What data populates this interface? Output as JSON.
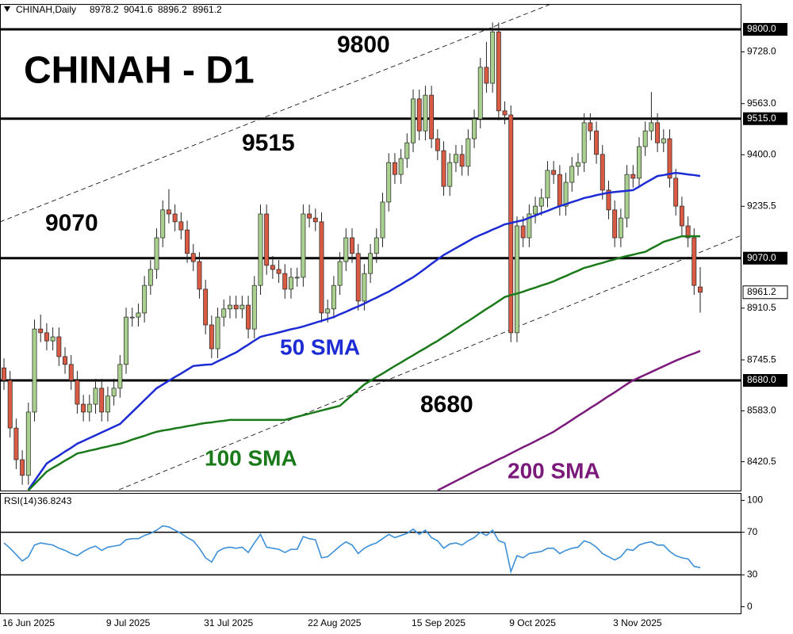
{
  "chart_data": [
    {
      "type": "candlestick",
      "symbol": "CHINAH,Daily",
      "title": "CHINAH - D1",
      "categories": [
        "16 Jun 2025",
        null,
        null,
        null,
        null,
        null,
        null,
        null,
        null,
        null,
        null,
        null,
        null,
        null,
        null,
        null,
        null,
        "9 Jul 2025",
        null,
        null,
        null,
        null,
        null,
        null,
        null,
        null,
        null,
        null,
        null,
        null,
        null,
        null,
        null,
        "31 Jul 2025",
        null,
        null,
        null,
        null,
        null,
        null,
        null,
        null,
        null,
        null,
        null,
        null,
        null,
        null,
        null,
        null,
        "22 Aug 2025",
        null,
        null,
        null,
        null,
        null,
        null,
        null,
        null,
        null,
        null,
        null,
        null,
        null,
        null,
        null,
        null,
        "15 Sep 2025",
        null,
        null,
        null,
        null,
        null,
        null,
        null,
        null,
        null,
        null,
        null,
        null,
        null,
        null,
        null,
        "9 Oct 2025",
        null,
        null,
        null,
        null,
        null,
        null,
        null,
        null,
        null,
        null,
        null,
        null,
        null,
        null,
        null,
        null,
        "3 Nov 2025",
        null,
        null,
        null,
        null,
        null,
        null,
        null,
        null,
        null,
        null,
        null,
        null,
        null,
        null
      ],
      "open": [
        8720,
        8680,
        8528,
        8427,
        8377,
        8579,
        8844,
        8832,
        8806,
        8819,
        8756,
        8731,
        8680,
        8604,
        8579,
        8604,
        8655,
        8579,
        8630,
        8655,
        8731,
        8882,
        8882,
        8895,
        8983,
        9034,
        9135,
        9224,
        9211,
        9186,
        9160,
        9085,
        9059,
        8971,
        8857,
        8781,
        8882,
        8908,
        8920,
        8908,
        8920,
        8844,
        8983,
        9211,
        9047,
        9034,
        9021,
        8971,
        9009,
        9009,
        9211,
        9198,
        9186,
        8895,
        8908,
        8983,
        9059,
        9135,
        9085,
        8933,
        9021,
        9085,
        9135,
        9249,
        9375,
        9337,
        9388,
        9438,
        9578,
        9476,
        9590,
        9451,
        9413,
        9299,
        9375,
        9401,
        9363,
        9451,
        9514,
        9679,
        9628,
        9792,
        9540,
        9527,
        8832,
        9173,
        9135,
        9211,
        9236,
        9262,
        9350,
        9337,
        9236,
        9312,
        9363,
        9375,
        9502,
        9476,
        9401,
        9287,
        9224,
        9135,
        9198,
        9337,
        9325,
        9426,
        9476,
        9502,
        9438,
        9451,
        9325,
        9236,
        9173,
        9135,
        8978.2
      ],
      "high": [
        8750,
        8710,
        8558,
        8457,
        8609,
        8874,
        8890,
        8862,
        8849,
        8849,
        8786,
        8761,
        8710,
        8634,
        8634,
        8685,
        8685,
        8660,
        8685,
        8761,
        8912,
        8912,
        8925,
        9013,
        9064,
        9165,
        9254,
        9290,
        9241,
        9216,
        9190,
        9115,
        9089,
        9001,
        8887,
        8912,
        8938,
        8950,
        8950,
        8950,
        8950,
        9013,
        9241,
        9241,
        9077,
        9064,
        9051,
        9039,
        9039,
        9241,
        9241,
        9228,
        9216,
        8938,
        9013,
        9089,
        9165,
        9165,
        9115,
        9051,
        9115,
        9165,
        9279,
        9405,
        9405,
        9418,
        9468,
        9608,
        9608,
        9620,
        9620,
        9481,
        9443,
        9405,
        9431,
        9431,
        9481,
        9544,
        9709,
        9760,
        9822,
        9822,
        9570,
        9557,
        9203,
        9203,
        9241,
        9266,
        9292,
        9380,
        9380,
        9367,
        9342,
        9393,
        9405,
        9532,
        9532,
        9506,
        9431,
        9317,
        9254,
        9228,
        9367,
        9367,
        9456,
        9506,
        9600,
        9532,
        9481,
        9481,
        9355,
        9266,
        9203,
        9165,
        9041.6
      ],
      "low": [
        8650,
        8498,
        8397,
        8347,
        8347,
        8549,
        8802,
        8776,
        8776,
        8726,
        8701,
        8650,
        8574,
        8549,
        8549,
        8574,
        8549,
        8549,
        8600,
        8625,
        8701,
        8852,
        8852,
        8865,
        8953,
        9004,
        9105,
        9181,
        9156,
        9130,
        9055,
        9029,
        8941,
        8827,
        8751,
        8751,
        8852,
        8878,
        8878,
        8878,
        8814,
        8814,
        8953,
        9017,
        9004,
        8991,
        8941,
        8941,
        8979,
        8979,
        9168,
        9156,
        8865,
        8865,
        8878,
        8953,
        9029,
        9055,
        8903,
        8903,
        8991,
        9055,
        9105,
        9219,
        9307,
        9307,
        9358,
        9408,
        9446,
        9446,
        9421,
        9383,
        9269,
        9269,
        9345,
        9333,
        9333,
        9421,
        9484,
        9598,
        9598,
        9510,
        9497,
        8802,
        8802,
        9105,
        9105,
        9181,
        9206,
        9232,
        9307,
        9206,
        9206,
        9282,
        9333,
        9345,
        9446,
        9371,
        9257,
        9194,
        9105,
        9105,
        9168,
        9295,
        9295,
        9396,
        9446,
        9408,
        9408,
        9295,
        9206,
        9143,
        9105,
        8953,
        8896.2
      ],
      "close": [
        8680,
        8528,
        8427,
        8377,
        8579,
        8844,
        8832,
        8806,
        8819,
        8756,
        8731,
        8680,
        8604,
        8579,
        8604,
        8655,
        8579,
        8630,
        8655,
        8731,
        8882,
        8882,
        8895,
        8983,
        9034,
        9135,
        9224,
        9211,
        9186,
        9160,
        9085,
        9059,
        8971,
        8857,
        8781,
        8882,
        8908,
        8920,
        8908,
        8920,
        8844,
        8983,
        9211,
        9047,
        9034,
        9021,
        8971,
        9009,
        9009,
        9211,
        9198,
        9186,
        8895,
        8908,
        8983,
        9059,
        9135,
        9085,
        8933,
        9021,
        9085,
        9135,
        9249,
        9375,
        9337,
        9388,
        9438,
        9578,
        9476,
        9590,
        9451,
        9413,
        9299,
        9375,
        9401,
        9363,
        9451,
        9514,
        9679,
        9628,
        9792,
        9540,
        9527,
        8832,
        9173,
        9135,
        9211,
        9236,
        9262,
        9350,
        9337,
        9236,
        9312,
        9363,
        9375,
        9502,
        9476,
        9401,
        9287,
        9224,
        9135,
        9198,
        9337,
        9325,
        9426,
        9476,
        9502,
        9438,
        9451,
        9325,
        9236,
        9173,
        9135,
        8983,
        8961.2
      ],
      "color_up": "#a9d08e",
      "color_down": "#d95b43",
      "series": [
        {
          "name": "50 SMA",
          "color": "#1c2bd4",
          "values": [
            null,
            null,
            null,
            null,
            8331,
            8359,
            8387,
            8415,
            8428,
            8440,
            8453,
            8465,
            8478,
            8487,
            8496,
            8505,
            8514,
            8523,
            8532,
            8541,
            8560,
            8579,
            8598,
            8617,
            8636,
            8655,
            8667,
            8679,
            8691,
            8702,
            8714,
            8726,
            8728,
            8730,
            8731,
            8741,
            8750,
            8760,
            8769,
            8782,
            8794,
            8807,
            8819,
            8824,
            8828,
            8833,
            8838,
            8843,
            8847,
            8852,
            8858,
            8864,
            8870,
            8876,
            8882,
            8891,
            8899,
            8908,
            8916,
            8925,
            8935,
            8944,
            8954,
            8963,
            8975,
            8986,
            8998,
            9009,
            9023,
            9037,
            9052,
            9066,
            9080,
            9091,
            9102,
            9113,
            9124,
            9135,
            9144,
            9152,
            9161,
            9169,
            9178,
            9182,
            9187,
            9191,
            9199,
            9206,
            9214,
            9221,
            9229,
            9236,
            9242,
            9249,
            9255,
            9262,
            9266,
            9271,
            9275,
            9279,
            9281,
            9283,
            9285,
            9287,
            9298,
            9310,
            9321,
            9332,
            9335,
            9339,
            9342,
            9340,
            9337,
            9335,
            9332
          ]
        },
        {
          "name": "100 SMA",
          "color": "#1a7a1a",
          "values": [
            null,
            null,
            null,
            null,
            8329,
            8349,
            8369,
            8389,
            8401,
            8412,
            8424,
            8435,
            8447,
            8451,
            8456,
            8460,
            8465,
            8469,
            8474,
            8478,
            8484,
            8491,
            8497,
            8503,
            8510,
            8516,
            8520,
            8523,
            8527,
            8530,
            8534,
            8537,
            8541,
            8544,
            8546,
            8549,
            8551,
            8554,
            8554,
            8554,
            8554,
            8554,
            8554,
            8554,
            8554,
            8554,
            8554,
            8559,
            8564,
            8569,
            8574,
            8579,
            8584,
            8589,
            8594,
            8599,
            8616,
            8633,
            8650,
            8667,
            8679,
            8691,
            8702,
            8714,
            8726,
            8737,
            8749,
            8760,
            8772,
            8783,
            8795,
            8806,
            8819,
            8831,
            8844,
            8857,
            8869,
            8882,
            8895,
            8908,
            8920,
            8933,
            8946,
            8952,
            8957,
            8963,
            8970,
            8976,
            8983,
            8989,
            8996,
            9005,
            9013,
            9022,
            9030,
            9039,
            9044,
            9050,
            9055,
            9061,
            9066,
            9072,
            9077,
            9081,
            9086,
            9090,
            9101,
            9111,
            9122,
            9128,
            9134,
            9140,
            9140,
            9140,
            9140
          ]
        },
        {
          "name": "200 SMA",
          "color": "#7b1a7b",
          "values": [
            null,
            null,
            null,
            null,
            null,
            null,
            null,
            null,
            null,
            null,
            null,
            null,
            null,
            null,
            null,
            null,
            null,
            null,
            null,
            null,
            null,
            null,
            null,
            null,
            null,
            null,
            null,
            null,
            null,
            null,
            null,
            null,
            null,
            null,
            null,
            null,
            null,
            null,
            null,
            null,
            null,
            null,
            null,
            null,
            null,
            null,
            null,
            null,
            null,
            null,
            null,
            null,
            null,
            null,
            null,
            null,
            null,
            null,
            null,
            null,
            null,
            null,
            null,
            null,
            null,
            null,
            null,
            null,
            null,
            null,
            null,
            8329,
            8339,
            8349,
            8359,
            8369,
            8379,
            8389,
            8399,
            8408,
            8418,
            8428,
            8437,
            8447,
            8457,
            8467,
            8476,
            8486,
            8496,
            8506,
            8516,
            8529,
            8541,
            8554,
            8567,
            8579,
            8592,
            8604,
            8617,
            8630,
            8642,
            8655,
            8668,
            8680,
            8689,
            8698,
            8707,
            8716,
            8725,
            8734,
            8743,
            8751,
            8759,
            8766,
            8774
          ]
        }
      ],
      "levels": [
        {
          "value": 9800,
          "label": "9800.0"
        },
        {
          "value": 9515,
          "label": "9515.0"
        },
        {
          "value": 9070,
          "label": "9070.0"
        },
        {
          "value": 8680,
          "label": "8680.0"
        }
      ],
      "ylim": [
        8326,
        9881
      ],
      "yticks": [
        {
          "value": 9728,
          "label": "9728.0"
        },
        {
          "value": 9563,
          "label": "9563.0"
        },
        {
          "value": 9400,
          "label": "9400.0"
        },
        {
          "value": 9235.5,
          "label": "9235.5"
        },
        {
          "value": 8910.5,
          "label": "8910.5"
        },
        {
          "value": 8745.5,
          "label": "8745.5"
        },
        {
          "value": 8583,
          "label": "8583.0"
        },
        {
          "value": 8420.5,
          "label": "8420.5"
        }
      ]
    },
    {
      "type": "line",
      "name": "RSI(14)",
      "color": "#3d8fd6",
      "values": [
        60,
        55,
        49,
        43,
        47,
        58,
        60,
        59,
        58,
        55,
        53,
        50,
        48,
        52,
        55,
        57,
        53,
        56,
        57,
        58,
        63,
        64,
        64,
        67,
        69,
        72,
        76,
        75,
        72,
        69,
        65,
        62,
        55,
        46,
        42,
        52,
        55,
        56,
        55,
        56,
        51,
        60,
        68,
        56,
        55,
        54,
        51,
        54,
        54,
        66,
        64,
        63,
        46,
        47,
        52,
        57,
        61,
        58,
        50,
        55,
        58,
        60,
        64,
        68,
        65,
        67,
        69,
        73,
        68,
        72,
        65,
        62,
        55,
        59,
        60,
        58,
        62,
        65,
        70,
        67,
        72,
        62,
        60,
        33,
        48,
        46,
        50,
        51,
        52,
        55,
        55,
        50,
        53,
        55,
        56,
        62,
        60,
        56,
        50,
        47,
        44,
        47,
        54,
        53,
        58,
        60,
        61,
        58,
        58,
        52,
        48,
        46,
        45,
        38,
        36.8243
      ],
      "levels": [
        70,
        30
      ],
      "ylim": [
        -7,
        107
      ],
      "yticks": [
        100,
        70,
        30,
        0
      ]
    }
  ]
}
